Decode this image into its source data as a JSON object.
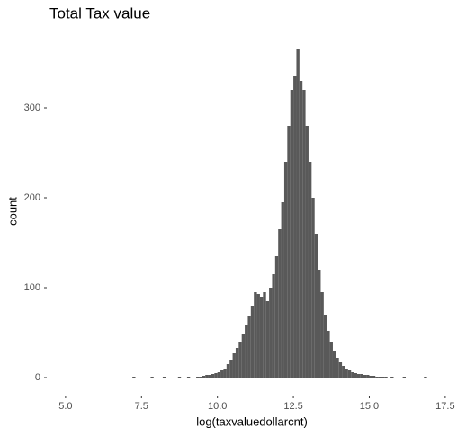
{
  "chart_data": {
    "type": "histogram",
    "title": "Total Tax value",
    "x_label": "log(taxvaluedollarcnt)",
    "y_label": "count",
    "color": "#595959",
    "grid": false,
    "xlim": [
      4.47,
      17.8
    ],
    "ylim": [
      -18,
      385
    ],
    "xticks": [
      {
        "value": 5,
        "label": "5.0"
      },
      7.5,
      {
        "value": 10,
        "label": "10.0"
      },
      12.5,
      {
        "value": 15,
        "label": "15.0"
      },
      17.5
    ],
    "yticks": [
      0,
      100,
      200,
      300
    ],
    "bins": [
      7,
      7.1,
      7.2,
      7.3,
      7.4,
      7.5,
      7.6,
      7.7,
      7.8,
      7.9,
      8,
      8.1,
      8.2,
      8.3,
      8.4,
      8.5,
      8.6,
      8.7,
      8.8,
      8.9,
      9,
      9.1,
      9.2,
      9.3,
      9.4,
      9.5,
      9.6,
      9.7,
      9.8,
      9.9,
      10,
      10.1,
      10.2,
      10.3,
      10.4,
      10.5,
      10.6,
      10.7,
      10.8,
      10.9,
      11,
      11.1,
      11.2,
      11.3,
      11.4,
      11.5,
      11.6,
      11.7,
      11.8,
      11.9,
      12,
      12.1,
      12.2,
      12.3,
      12.4,
      12.5,
      12.6,
      12.7,
      12.8,
      12.9,
      13,
      13.1,
      13.2,
      13.3,
      13.4,
      13.5,
      13.6,
      13.7,
      13.8,
      13.9,
      14,
      14.1,
      14.2,
      14.3,
      14.4,
      14.5,
      14.6,
      14.7,
      14.8,
      14.9,
      15,
      15.1,
      15.2,
      15.3,
      15.4,
      15.5,
      15.6,
      15.7,
      15.8,
      15.9,
      16,
      16.1,
      16.2,
      16.3,
      16.4,
      16.5,
      16.6,
      16.7,
      16.8,
      16.9,
      17
    ],
    "values": [
      0,
      0,
      1,
      0,
      0,
      0,
      0,
      0,
      1,
      0,
      0,
      0,
      1,
      0,
      0,
      0,
      0,
      1,
      0,
      0,
      1,
      0,
      0,
      1,
      1,
      2,
      3,
      3,
      4,
      5,
      6,
      8,
      10,
      15,
      20,
      27,
      33,
      40,
      48,
      58,
      68,
      80,
      95,
      93,
      90,
      95,
      85,
      100,
      115,
      135,
      165,
      195,
      240,
      280,
      320,
      335,
      365,
      330,
      320,
      280,
      240,
      200,
      160,
      120,
      95,
      70,
      52,
      40,
      30,
      22,
      17,
      13,
      10,
      8,
      6,
      5,
      4,
      4,
      3,
      3,
      2,
      2,
      1,
      1,
      1,
      1,
      0,
      1,
      0,
      0,
      0,
      1,
      0,
      0,
      0,
      0,
      0,
      0,
      1,
      0
    ]
  }
}
